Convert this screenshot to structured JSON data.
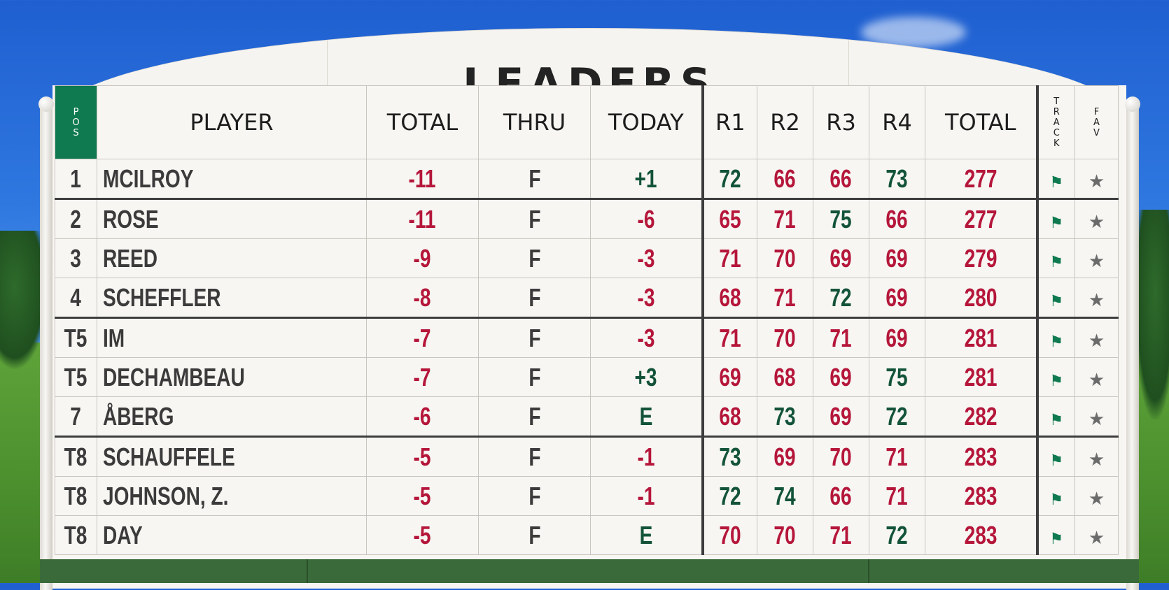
{
  "title": "LEADERS",
  "headers": {
    "pos": "POS",
    "player": "PLAYER",
    "total": "TOTAL",
    "thru": "THRU",
    "today": "TODAY",
    "r1": "R1",
    "r2": "R2",
    "r3": "R3",
    "r4": "R4",
    "total_strokes": "TOTAL",
    "track": "TRACK",
    "fav": "FAV"
  },
  "icons": {
    "track": "flag-icon",
    "fav": "star-icon"
  },
  "colors": {
    "over_par": "#13533a",
    "under_par": "#b5163a",
    "pos_header": "#0f7a4f"
  },
  "players": [
    {
      "pos": "1",
      "name": "MCILROY",
      "total": "-11",
      "thru": "F",
      "today": "+1",
      "r1": "72",
      "r2": "66",
      "r3": "66",
      "r4": "73",
      "total_strokes": "277"
    },
    {
      "pos": "2",
      "name": "ROSE",
      "total": "-11",
      "thru": "F",
      "today": "-6",
      "r1": "65",
      "r2": "71",
      "r3": "75",
      "r4": "66",
      "total_strokes": "277"
    },
    {
      "pos": "3",
      "name": "REED",
      "total": "-9",
      "thru": "F",
      "today": "-3",
      "r1": "71",
      "r2": "70",
      "r3": "69",
      "r4": "69",
      "total_strokes": "279"
    },
    {
      "pos": "4",
      "name": "SCHEFFLER",
      "total": "-8",
      "thru": "F",
      "today": "-3",
      "r1": "68",
      "r2": "71",
      "r3": "72",
      "r4": "69",
      "total_strokes": "280"
    },
    {
      "pos": "T5",
      "name": "IM",
      "total": "-7",
      "thru": "F",
      "today": "-3",
      "r1": "71",
      "r2": "70",
      "r3": "71",
      "r4": "69",
      "total_strokes": "281"
    },
    {
      "pos": "T5",
      "name": "DECHAMBEAU",
      "total": "-7",
      "thru": "F",
      "today": "+3",
      "r1": "69",
      "r2": "68",
      "r3": "69",
      "r4": "75",
      "total_strokes": "281"
    },
    {
      "pos": "7",
      "name": "ÅBERG",
      "total": "-6",
      "thru": "F",
      "today": "E",
      "r1": "68",
      "r2": "73",
      "r3": "69",
      "r4": "72",
      "total_strokes": "282"
    },
    {
      "pos": "T8",
      "name": "SCHAUFFELE",
      "total": "-5",
      "thru": "F",
      "today": "-1",
      "r1": "73",
      "r2": "69",
      "r3": "70",
      "r4": "71",
      "total_strokes": "283"
    },
    {
      "pos": "T8",
      "name": "JOHNSON, Z.",
      "total": "-5",
      "thru": "F",
      "today": "-1",
      "r1": "72",
      "r2": "74",
      "r3": "66",
      "r4": "71",
      "total_strokes": "283"
    },
    {
      "pos": "T8",
      "name": "DAY",
      "total": "-5",
      "thru": "F",
      "today": "E",
      "r1": "70",
      "r2": "70",
      "r3": "71",
      "r4": "72",
      "total_strokes": "283"
    }
  ]
}
